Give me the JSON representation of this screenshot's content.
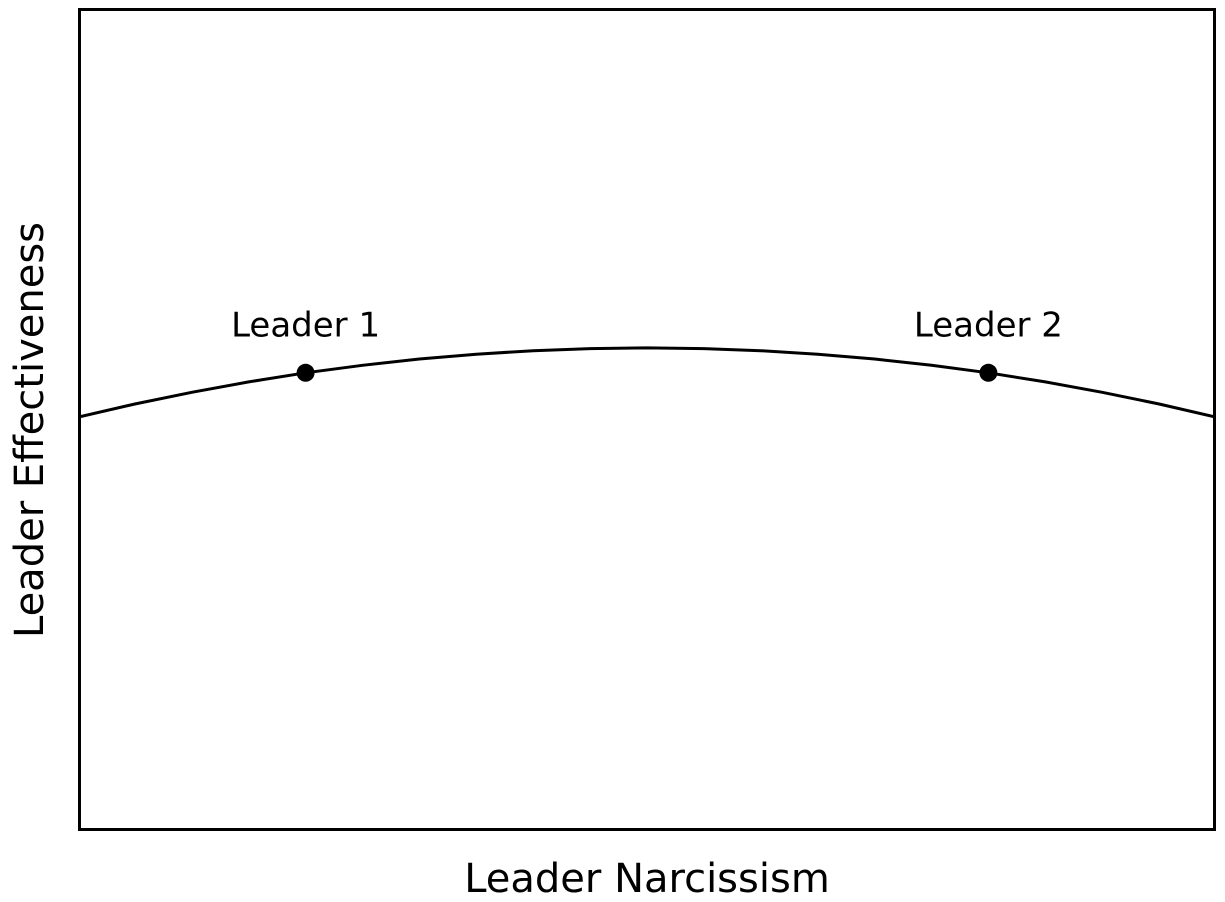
{
  "chart_data": {
    "type": "line",
    "title": "",
    "xlabel": "Leader Narcissism",
    "ylabel": "Leader Effectiveness",
    "x_range": [
      0,
      1
    ],
    "y_range": [
      0,
      1
    ],
    "ticks": "none",
    "grid": false,
    "legend": "none",
    "line_color": "#000000",
    "marker_color": "#000000",
    "background_color": "#ffffff",
    "description": "Curvilinear (inverted-U) relationship between leader narcissism and leader effectiveness; two leaders marked at equal effectiveness on either side of the peak.",
    "series": [
      {
        "name": "effectiveness_curve",
        "x": [
          0.0,
          0.05,
          0.1,
          0.15,
          0.2,
          0.25,
          0.3,
          0.35,
          0.4,
          0.45,
          0.5,
          0.55,
          0.6,
          0.65,
          0.7,
          0.75,
          0.8,
          0.85,
          0.9,
          0.95,
          1.0
        ],
        "y": [
          0.5028,
          0.5188,
          0.5331,
          0.5457,
          0.5567,
          0.5659,
          0.5735,
          0.5794,
          0.5836,
          0.5862,
          0.587,
          0.5862,
          0.5836,
          0.5794,
          0.5735,
          0.5659,
          0.5567,
          0.5457,
          0.5331,
          0.5188,
          0.5028
        ]
      }
    ],
    "points": [
      {
        "label": "Leader 1",
        "x": 0.2,
        "y": 0.5567
      },
      {
        "label": "Leader 2",
        "x": 0.8,
        "y": 0.5567
      }
    ]
  }
}
